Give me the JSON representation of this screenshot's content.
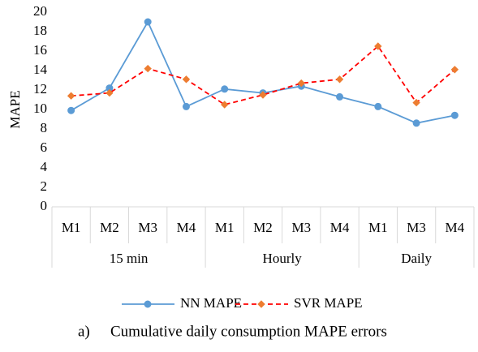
{
  "chart_data": {
    "type": "line",
    "ylabel": "MAPE",
    "ylim": [
      0,
      20
    ],
    "yticks": [
      0,
      2,
      4,
      6,
      8,
      10,
      12,
      14,
      16,
      18,
      20
    ],
    "groups": [
      {
        "name": "15 min",
        "categories": [
          "M1",
          "M2",
          "M3",
          "M4"
        ]
      },
      {
        "name": "Hourly",
        "categories": [
          "M1",
          "M2",
          "M3",
          "M4"
        ]
      },
      {
        "name": "Daily",
        "categories": [
          "M1",
          "M3",
          "M4"
        ]
      }
    ],
    "series": [
      {
        "name": "NN MAPE",
        "color": "#5b9bd5",
        "dash": false,
        "marker": "circle",
        "values": [
          9.9,
          12.2,
          19.0,
          10.3,
          12.1,
          11.7,
          12.4,
          11.3,
          10.3,
          8.6,
          9.4
        ]
      },
      {
        "name": "SVR MAPE",
        "color": "#ff0000",
        "marker_color": "#ed7d31",
        "dash": true,
        "marker": "diamond",
        "values": [
          11.4,
          11.7,
          14.2,
          13.1,
          10.5,
          11.5,
          12.7,
          13.1,
          16.5,
          10.7,
          14.1
        ]
      }
    ],
    "caption_label": "a)",
    "caption": "Cumulative daily consumption MAPE errors"
  }
}
